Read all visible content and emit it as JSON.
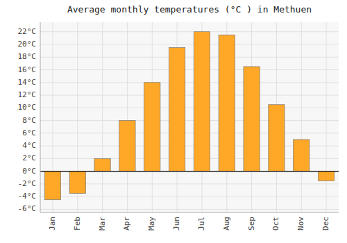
{
  "chart_data": {
    "type": "bar",
    "title": "Average monthly temperatures (°C ) in Methuen",
    "categories": [
      "Jan",
      "Feb",
      "Mar",
      "Apr",
      "May",
      "Jun",
      "Jul",
      "Aug",
      "Sep",
      "Oct",
      "Nov",
      "Dec"
    ],
    "values": [
      -4.5,
      -3.5,
      2.0,
      8.0,
      14.0,
      19.5,
      22.0,
      21.5,
      16.5,
      10.5,
      5.0,
      -1.5
    ],
    "color": "#FFA726",
    "ylim": [
      -6.5,
      23.5
    ],
    "yticks": [
      {
        "value": -6,
        "label": "-6°C"
      },
      {
        "value": -4,
        "label": "-4°C"
      },
      {
        "value": -2,
        "label": "-2°C"
      },
      {
        "value": 0,
        "label": "0°C"
      },
      {
        "value": 2,
        "label": "2°C"
      },
      {
        "value": 4,
        "label": "4°C"
      },
      {
        "value": 6,
        "label": "6°C"
      },
      {
        "value": 8,
        "label": "8°C"
      },
      {
        "value": 10,
        "label": "10°C"
      },
      {
        "value": 12,
        "label": "12°C"
      },
      {
        "value": 14,
        "label": "14°C"
      },
      {
        "value": 16,
        "label": "16°C"
      },
      {
        "value": 18,
        "label": "18°C"
      },
      {
        "value": 20,
        "label": "20°C"
      },
      {
        "value": 22,
        "label": "22°C"
      }
    ],
    "grid": true
  }
}
